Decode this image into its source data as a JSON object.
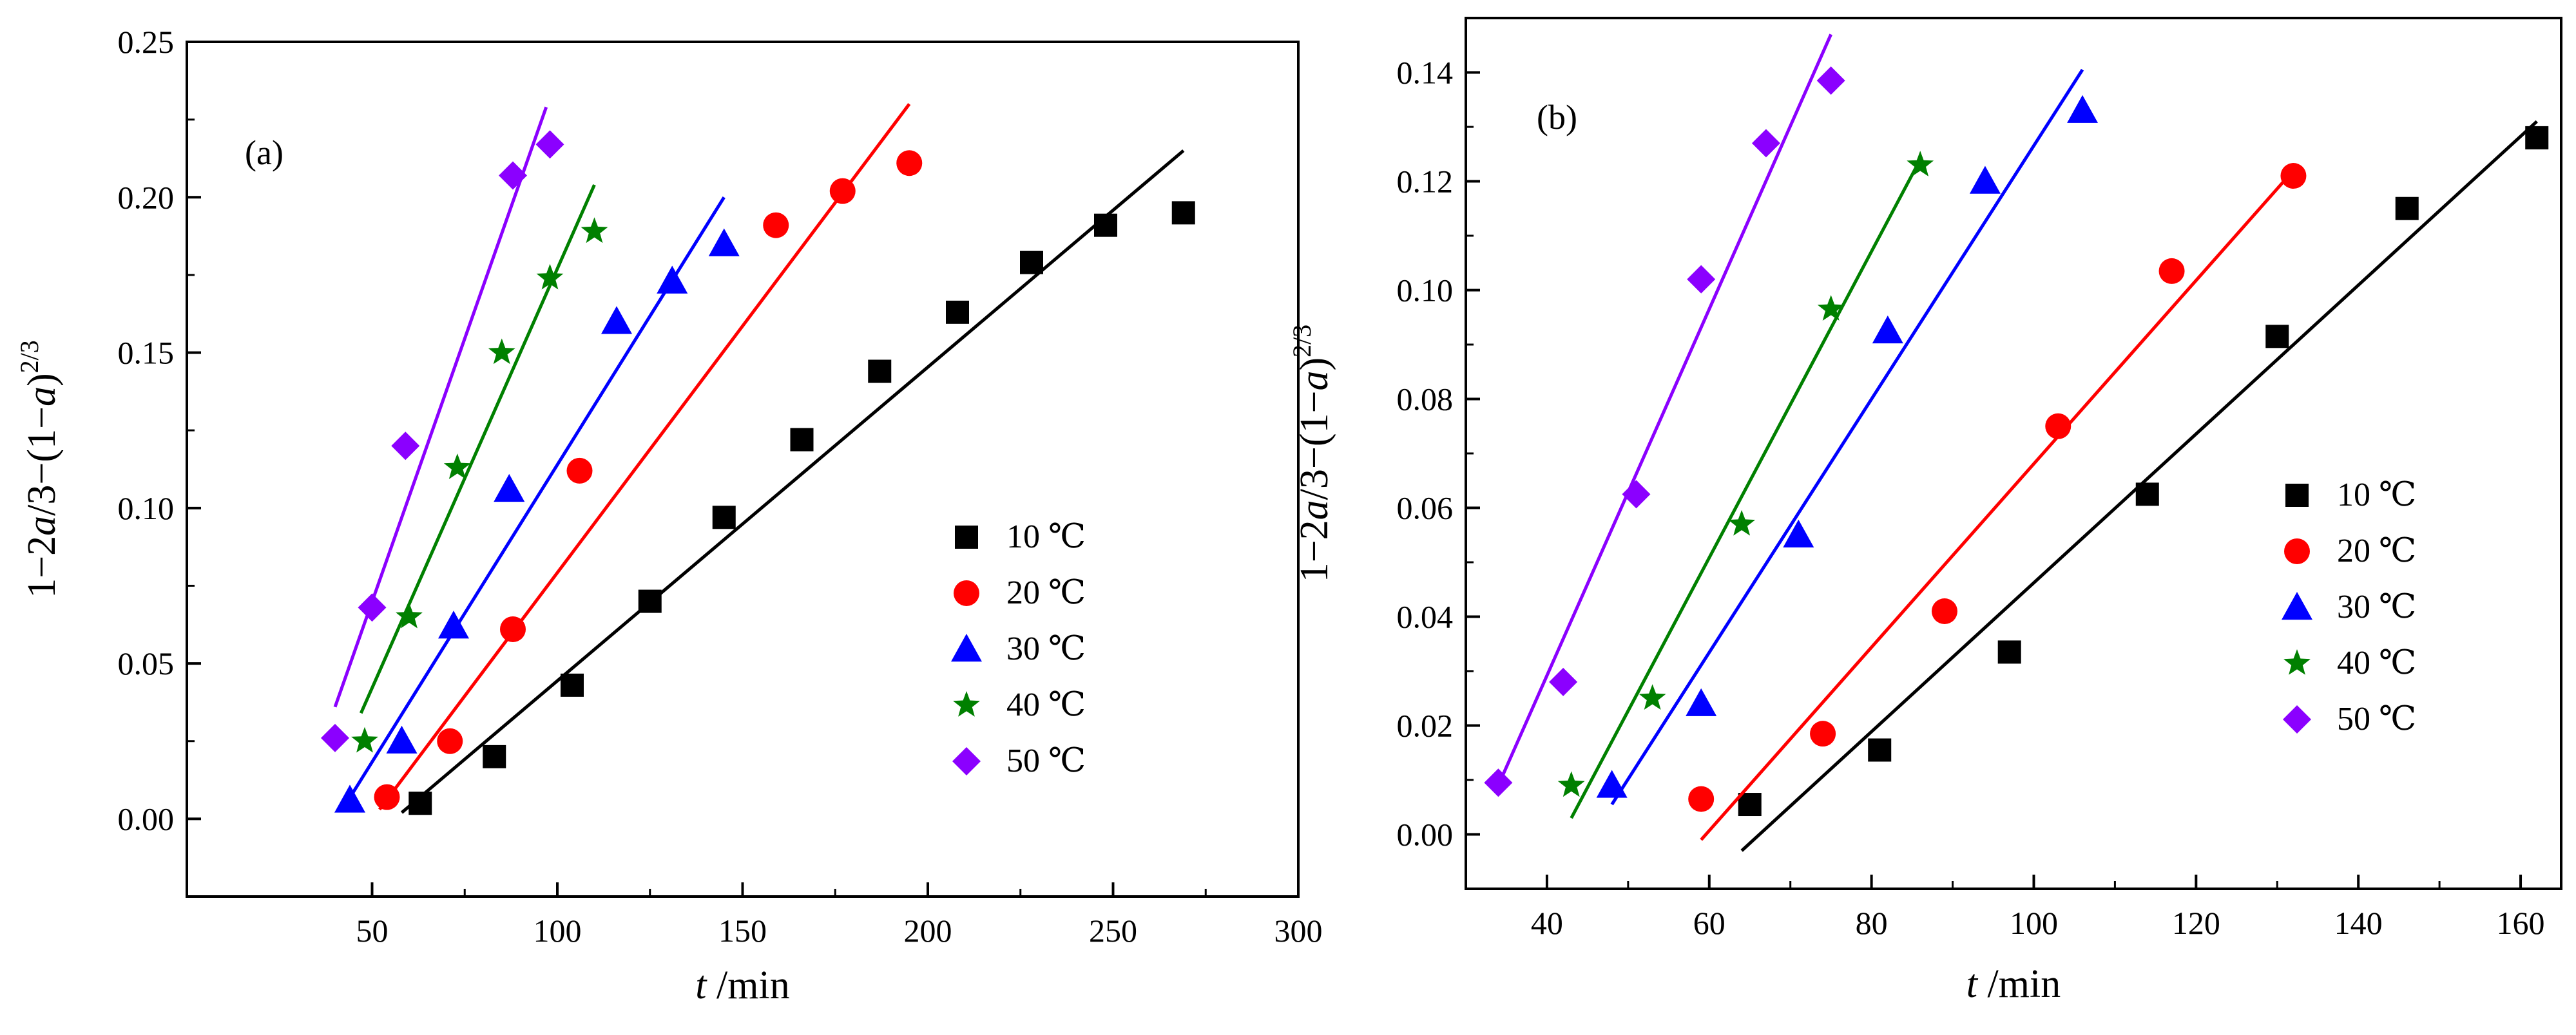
{
  "chart_data": [
    {
      "type": "scatter",
      "panel_label": "(a)",
      "xlabel_var": "t",
      "xlabel_unit": " /min",
      "ylabel": "1−2a/3−(1−a)^(2/3)",
      "ylabel_parts": {
        "lead": "1−2",
        "var1": "a",
        "mid": "/3−(1−",
        "var2": "a",
        "close": ")",
        "exp": "2/3"
      },
      "xlim": [
        0,
        300
      ],
      "ylim": [
        -0.025,
        0.25
      ],
      "xticks": [
        50,
        100,
        150,
        200,
        250,
        300
      ],
      "xtick_labels": [
        "50",
        "100",
        "150",
        "200",
        "250",
        "300"
      ],
      "yticks": [
        0.0,
        0.05,
        0.1,
        0.15,
        0.2,
        0.25
      ],
      "ytick_labels": [
        "0.00",
        "0.05",
        "0.10",
        "0.15",
        "0.20",
        "0.25"
      ],
      "legend_position": "bottom-right",
      "series": [
        {
          "name": "10 ℃",
          "marker": "square",
          "color": "#000000",
          "x": [
            63,
            83,
            104,
            125,
            145,
            166,
            187,
            208,
            228,
            248,
            269
          ],
          "y": [
            0.005,
            0.02,
            0.043,
            0.07,
            0.097,
            0.122,
            0.144,
            0.163,
            0.179,
            0.191,
            0.195
          ],
          "fit": [
            [
              58,
              0.002
            ],
            [
              269,
              0.215
            ]
          ]
        },
        {
          "name": "20 ℃",
          "marker": "circle",
          "color": "#ff0000",
          "x": [
            54,
            71,
            88,
            106,
            159,
            177,
            195
          ],
          "y": [
            0.007,
            0.025,
            0.061,
            0.112,
            0.191,
            0.202,
            0.211
          ],
          "fit": [
            [
              52,
              0.003
            ],
            [
              195,
              0.23
            ]
          ]
        },
        {
          "name": "30 ℃",
          "marker": "triangle",
          "color": "#0000ff",
          "x": [
            44,
            58,
            72,
            87,
            116,
            131,
            145
          ],
          "y": [
            0.006,
            0.025,
            0.062,
            0.106,
            0.16,
            0.173,
            0.185
          ],
          "fit": [
            [
              42,
              0.003
            ],
            [
              145,
              0.2
            ]
          ]
        },
        {
          "name": "40 ℃",
          "marker": "star",
          "color": "#008000",
          "x": [
            48,
            60,
            73,
            85,
            98,
            110
          ],
          "y": [
            0.025,
            0.065,
            0.113,
            0.15,
            0.174,
            0.189
          ],
          "fit": [
            [
              47,
              0.034
            ],
            [
              110,
              0.204
            ]
          ]
        },
        {
          "name": "50 ℃",
          "marker": "diamond",
          "color": "#8b00ff",
          "x": [
            40,
            50,
            59,
            88,
            98
          ],
          "y": [
            0.026,
            0.068,
            0.12,
            0.207,
            0.217
          ],
          "fit": [
            [
              40,
              0.036
            ],
            [
              97,
              0.229
            ]
          ]
        }
      ]
    },
    {
      "type": "scatter",
      "panel_label": "(b)",
      "xlabel_var": "t",
      "xlabel_unit": " /min",
      "ylabel": "1−2a/3−(1−a)^(2/3)",
      "ylabel_parts": {
        "lead": "1−2",
        "var1": "a",
        "mid": "/3−(1−",
        "var2": "a",
        "close": ")",
        "exp": "2/3"
      },
      "xlim": [
        30,
        165
      ],
      "ylim": [
        -0.01,
        0.15
      ],
      "xticks": [
        40,
        60,
        80,
        100,
        120,
        140,
        160
      ],
      "xtick_labels": [
        "40",
        "60",
        "80",
        "100",
        "120",
        "140",
        "160"
      ],
      "yticks": [
        0.0,
        0.02,
        0.04,
        0.06,
        0.08,
        0.1,
        0.12,
        0.14
      ],
      "ytick_labels": [
        "0.00",
        "0.02",
        "0.04",
        "0.06",
        "0.08",
        "0.10",
        "0.12",
        "0.14"
      ],
      "legend_position": "bottom-right",
      "series": [
        {
          "name": "10 ℃",
          "marker": "square",
          "color": "#000000",
          "x": [
            65,
            81,
            97,
            114,
            130,
            146,
            162
          ],
          "y": [
            0.0055,
            0.0155,
            0.0335,
            0.0625,
            0.0915,
            0.115,
            0.128
          ],
          "fit": [
            [
              64,
              -0.003
            ],
            [
              162,
              0.131
            ]
          ]
        },
        {
          "name": "20 ℃",
          "marker": "circle",
          "color": "#ff0000",
          "x": [
            59,
            74,
            89,
            103,
            117,
            132
          ],
          "y": [
            0.0065,
            0.0185,
            0.041,
            0.075,
            0.1035,
            0.121
          ],
          "fit": [
            [
              59,
              -0.001
            ],
            [
              132,
              0.122
            ]
          ]
        },
        {
          "name": "30 ℃",
          "marker": "triangle",
          "color": "#0000ff",
          "x": [
            48,
            59,
            71,
            82,
            94,
            106
          ],
          "y": [
            0.009,
            0.024,
            0.055,
            0.0925,
            0.12,
            0.133
          ],
          "fit": [
            [
              48,
              0.0055
            ],
            [
              106,
              0.1405
            ]
          ]
        },
        {
          "name": "40 ℃",
          "marker": "star",
          "color": "#008000",
          "x": [
            43,
            53,
            64,
            75,
            86
          ],
          "y": [
            0.009,
            0.025,
            0.057,
            0.0965,
            0.123
          ],
          "fit": [
            [
              43,
              0.003
            ],
            [
              86,
              0.124
            ]
          ]
        },
        {
          "name": "50 ℃",
          "marker": "diamond",
          "color": "#8b00ff",
          "x": [
            34,
            42,
            51,
            59,
            67,
            75
          ],
          "y": [
            0.0095,
            0.028,
            0.0625,
            0.102,
            0.127,
            0.1385
          ],
          "fit": [
            [
              34,
              0.009
            ],
            [
              75,
              0.147
            ]
          ]
        }
      ]
    }
  ]
}
